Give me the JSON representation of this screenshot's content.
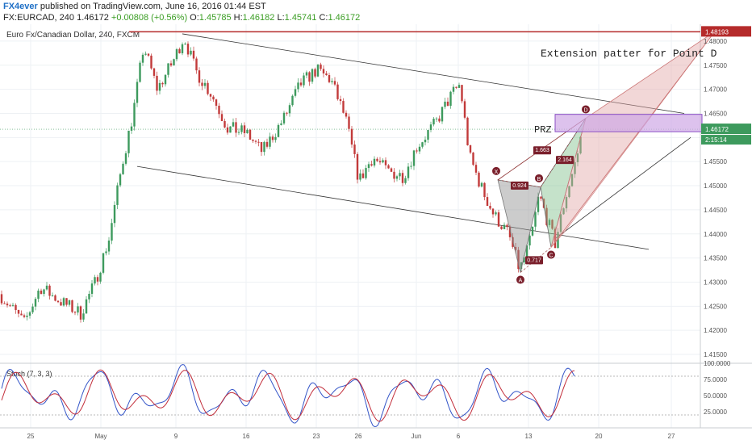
{
  "header": {
    "user": "FX4ever",
    "published": "published on TradingView.com, June 16, 2016 01:44 EST",
    "symbol": "FX:EURCAD, 240",
    "last": "1.46172",
    "change": "+0.00808 (+0.56%)",
    "open_label": "O:",
    "open": "1.45785",
    "high_label": "H:",
    "high": "1.46182",
    "low_label": "L:",
    "low": "1.45741",
    "close_label": "C:",
    "close": "1.46172"
  },
  "chart_data": {
    "type": "candlestick",
    "title": "Euro Fx/Canadian Dollar, 240, FXCM",
    "ylim": [
      1.4135,
      1.4835
    ],
    "y_ticks": [
      "1.48000",
      "1.47500",
      "1.47000",
      "1.46500",
      "1.46000",
      "1.45500",
      "1.45000",
      "1.44500",
      "1.44000",
      "1.43500",
      "1.43000",
      "1.42500",
      "1.42000",
      "1.41500"
    ],
    "x_ticks": [
      "25",
      "May",
      "9",
      "16",
      "23",
      "26",
      "Jun",
      "6",
      "13",
      "20",
      "27"
    ],
    "last_price_label": "1.46172",
    "countdown_label": "2:15:14",
    "top_level_label": "1.48193",
    "resistance_level": 1.48193,
    "current_price": 1.46172,
    "annotations": {
      "extension_text": "Extension patter for Point D",
      "prz_text": "PRZ",
      "prz_zone": [
        1.4612,
        1.4648
      ]
    },
    "pattern_points": [
      {
        "label": "X",
        "value": 1.4512
      },
      {
        "label": "A",
        "value": 1.432
      },
      {
        "label": "B",
        "value": 1.4497
      },
      {
        "label": "C",
        "value": 1.4372
      },
      {
        "label": "D",
        "value": 1.464
      }
    ],
    "ratios": [
      "0.924",
      "0.717",
      "1.663",
      "2.164"
    ],
    "stochastic": {
      "title": "Stoch (7, 3, 3)",
      "ylim": [
        0,
        100
      ],
      "y_ticks": [
        "100.0000",
        "75.0000",
        "50.0000",
        "25.0000"
      ],
      "levels": [
        80,
        20
      ]
    },
    "colors": {
      "up": "#3d9a5d",
      "down": "#c23a3a",
      "resistance": "#b52b2b",
      "prz_fill": "#cfa8e6",
      "prz_stroke": "#8a4fc4",
      "pattern_gray": "#8e8e8e",
      "pattern_green": "#7fbf8a",
      "pattern_red": "#e3a6a6",
      "stoch_k": "#3455c8",
      "stoch_d": "#c22d3a"
    }
  }
}
